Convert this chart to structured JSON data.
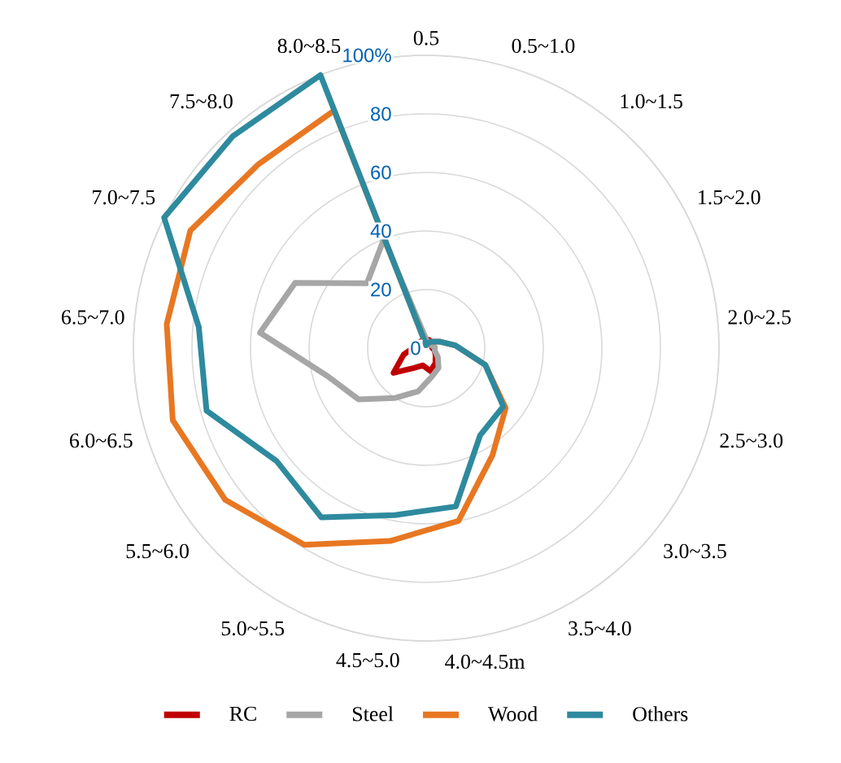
{
  "chart_data": {
    "type": "radar",
    "categories": [
      "0.5",
      "0.5~1.0",
      "1.0~1.5",
      "1.5~2.0",
      "2.0~2.5",
      "2.5~3.0",
      "3.0~3.5",
      "3.5~4.0",
      "4.0~4.5m",
      "4.5~5.0",
      "5.0~5.5",
      "5.5~6.0",
      "6.0~6.5",
      "6.5~7.0",
      "7.0~7.5",
      "7.5~8.0",
      "8.0~8.5"
    ],
    "series": [
      {
        "name": "RC",
        "color": "#c00000",
        "values": [
          3,
          3,
          2,
          2,
          2,
          3,
          4,
          6,
          8,
          6,
          8,
          14,
          8,
          4,
          3,
          3,
          3
        ]
      },
      {
        "name": "Steel",
        "color": "#a6a6a6",
        "values": [
          3,
          2,
          2,
          2,
          3,
          3,
          5,
          8,
          10,
          15,
          20,
          29,
          35,
          57,
          50,
          30,
          40
        ]
      },
      {
        "name": "Wood",
        "color": "#e87722",
        "values": [
          1,
          2,
          3,
          5,
          10,
          21,
          34,
          43,
          60,
          67,
          79,
          86,
          90,
          89,
          90,
          85,
          87
        ]
      },
      {
        "name": "Others",
        "color": "#2e8a9e",
        "values": [
          1,
          2,
          3,
          5,
          10,
          21,
          33,
          35,
          55,
          58,
          68,
          64,
          78,
          78,
          100,
          98,
          100
        ]
      }
    ],
    "ylim": [
      0,
      100
    ],
    "yticks": [
      0,
      20,
      40,
      60,
      80,
      {
        "value": 100,
        "label": "100%"
      }
    ],
    "grid": "y",
    "legend": "bottom"
  }
}
